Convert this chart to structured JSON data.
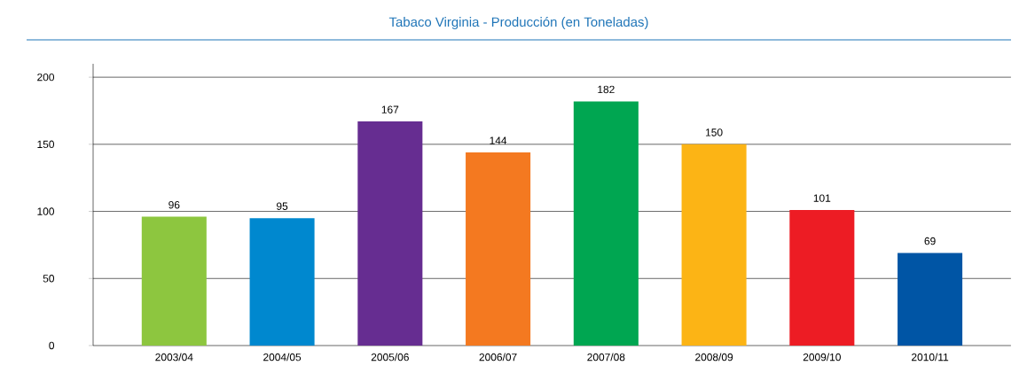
{
  "chart_data": {
    "type": "bar",
    "title": "Tabaco Virginia - Producción (en Toneladas)",
    "categories": [
      "2003/04",
      "2004/05",
      "2005/06",
      "2006/07",
      "2007/08",
      "2008/09",
      "2009/10",
      "2010/11"
    ],
    "values": [
      96,
      95,
      167,
      144,
      182,
      150,
      101,
      69
    ],
    "colors": [
      "#8dc63f",
      "#0088cf",
      "#662d91",
      "#f47920",
      "#00a651",
      "#fcb415",
      "#ed1c24",
      "#0055a5"
    ],
    "ylim": [
      0,
      210
    ],
    "yticks": [
      0,
      50,
      100,
      150,
      200
    ],
    "grid": "y",
    "data_labels": true
  }
}
